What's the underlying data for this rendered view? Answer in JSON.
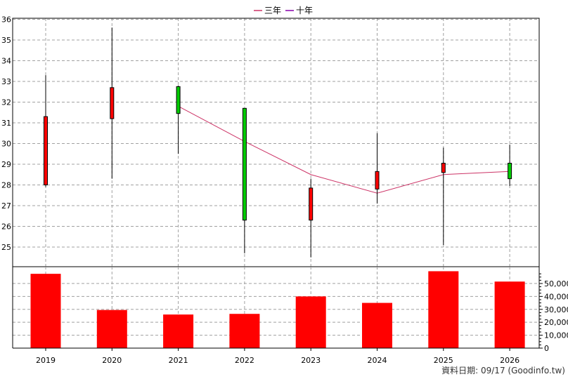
{
  "legend": [
    {
      "label": "三年",
      "color": "#cc3366"
    },
    {
      "label": "十年",
      "color": "#8800aa"
    }
  ],
  "footer": "資料日期: 09/17  (Goodinfo.tw)",
  "chart_data": [
    {
      "type": "candlestick",
      "categories": [
        "2019",
        "2020",
        "2021",
        "2022",
        "2023",
        "2024",
        "2025",
        "2026"
      ],
      "candles": [
        {
          "x": "2019",
          "open": 28.0,
          "close": 31.3,
          "high": 33.3,
          "low": 27.9
        },
        {
          "x": "2020",
          "open": 31.2,
          "close": 32.7,
          "high": 35.6,
          "low": 28.3
        },
        {
          "x": "2021",
          "open": 32.75,
          "close": 31.45,
          "high": 32.8,
          "low": 29.5
        },
        {
          "x": "2022",
          "open": 31.7,
          "close": 26.3,
          "high": 31.7,
          "low": 24.7
        },
        {
          "x": "2023",
          "open": 26.3,
          "close": 27.85,
          "high": 28.3,
          "low": 24.5
        },
        {
          "x": "2024",
          "open": 27.8,
          "close": 28.65,
          "high": 30.5,
          "low": 27.1
        },
        {
          "x": "2025",
          "open": 28.6,
          "close": 29.05,
          "high": 29.8,
          "low": 25.1
        },
        {
          "x": "2026",
          "open": 29.05,
          "close": 28.3,
          "high": 29.95,
          "low": 27.95
        }
      ],
      "up_color": "#ff0000",
      "down_color": "#00cc00",
      "lines": [
        {
          "name": "三年",
          "color": "#cc3366",
          "points": [
            [
              "2021",
              31.8
            ],
            [
              "2022",
              30.1
            ],
            [
              "2023",
              28.5
            ],
            [
              "2024",
              27.6
            ],
            [
              "2025",
              28.5
            ],
            [
              "2026",
              28.65
            ]
          ]
        }
      ],
      "y_ticks": [
        25,
        26,
        27,
        28,
        29,
        30,
        31,
        32,
        33,
        34,
        35,
        36
      ],
      "ylim": [
        24.05,
        36.05
      ]
    },
    {
      "type": "bar",
      "categories": [
        "2019",
        "2020",
        "2021",
        "2022",
        "2023",
        "2024",
        "2025",
        "2026"
      ],
      "values": [
        57500,
        29500,
        26000,
        26500,
        40000,
        35000,
        59500,
        51500
      ],
      "color": "#ff0000",
      "y_ticks": [
        0,
        10000,
        20000,
        30000,
        40000,
        50000
      ],
      "y_tick_labels": [
        "0",
        "10,000",
        "20,000",
        "30,000",
        "40,000",
        "50,000"
      ],
      "ylim": [
        0,
        63000
      ]
    }
  ]
}
